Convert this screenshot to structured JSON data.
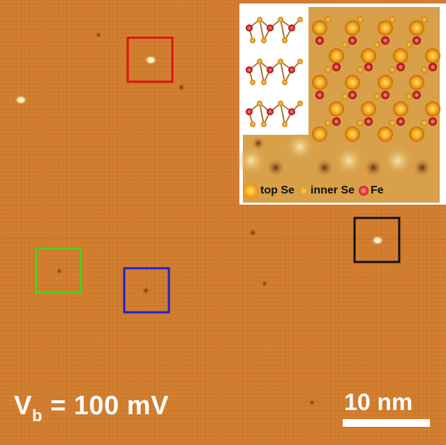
{
  "image": {
    "bias_label_prefix": "V",
    "bias_label_sub": "b",
    "bias_label_value": " = 100 mV",
    "scale_bar_label": "10 nm"
  },
  "legend": {
    "items": [
      {
        "label": "top Se",
        "color": "#f39a10"
      },
      {
        "label": "inner Se",
        "color": "#e8a020"
      },
      {
        "label": "Fe",
        "color": "#d42b2b"
      }
    ]
  },
  "markers": [
    {
      "name": "red-box",
      "color": "#e01010"
    },
    {
      "name": "green-box",
      "color": "#4ad21a"
    },
    {
      "name": "blue-box",
      "color": "#2020d0"
    },
    {
      "name": "black-box",
      "color": "#111111"
    }
  ],
  "colors": {
    "stm_background": "#cf7a2c",
    "inset_background": "#d8a048"
  }
}
